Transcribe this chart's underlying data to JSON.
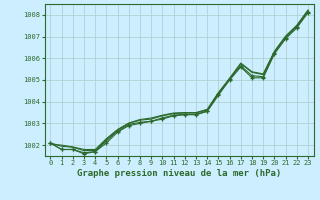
{
  "x": [
    0,
    1,
    2,
    3,
    4,
    5,
    6,
    7,
    8,
    9,
    10,
    11,
    12,
    13,
    14,
    15,
    16,
    17,
    18,
    19,
    20,
    21,
    22,
    23
  ],
  "line1": [
    1002.1,
    1001.8,
    1001.8,
    1001.6,
    1001.7,
    1002.1,
    1002.6,
    1002.9,
    1003.0,
    1003.1,
    1003.2,
    1003.35,
    1003.4,
    1003.4,
    1003.55,
    1004.3,
    1005.0,
    1005.6,
    1005.1,
    1005.1,
    1006.2,
    1006.9,
    1007.4,
    1008.1
  ],
  "line2": [
    1002.1,
    1001.8,
    1001.8,
    1001.65,
    1001.7,
    1002.2,
    1002.65,
    1002.95,
    1003.05,
    1003.1,
    1003.25,
    1003.38,
    1003.42,
    1003.42,
    1003.58,
    1004.35,
    1005.05,
    1005.65,
    1005.2,
    1005.15,
    1006.25,
    1006.95,
    1007.45,
    1008.15
  ],
  "line3": [
    1002.1,
    1001.95,
    1001.9,
    1001.75,
    1001.75,
    1002.25,
    1002.7,
    1003.0,
    1003.15,
    1003.2,
    1003.35,
    1003.45,
    1003.48,
    1003.48,
    1003.62,
    1004.4,
    1005.05,
    1005.75,
    1005.35,
    1005.25,
    1006.3,
    1007.0,
    1007.5,
    1008.2
  ],
  "line4": [
    1002.05,
    1002.0,
    1001.92,
    1001.8,
    1001.8,
    1002.3,
    1002.72,
    1003.02,
    1003.18,
    1003.25,
    1003.38,
    1003.48,
    1003.5,
    1003.5,
    1003.65,
    1004.42,
    1005.08,
    1005.78,
    1005.38,
    1005.28,
    1006.32,
    1007.02,
    1007.52,
    1008.22
  ],
  "line_color": "#2d6a2d",
  "bg_color": "#cceeff",
  "grid_color": "#aacccc",
  "xlabel": "Graphe pression niveau de la mer (hPa)",
  "ylim": [
    1001.5,
    1008.5
  ],
  "xlim_min": -0.5,
  "xlim_max": 23.5,
  "yticks": [
    1002,
    1003,
    1004,
    1005,
    1006,
    1007,
    1008
  ],
  "xticks": [
    0,
    1,
    2,
    3,
    4,
    5,
    6,
    7,
    8,
    9,
    10,
    11,
    12,
    13,
    14,
    15,
    16,
    17,
    18,
    19,
    20,
    21,
    22,
    23
  ],
  "xtick_labels": [
    "0",
    "1",
    "2",
    "3",
    "4",
    "5",
    "6",
    "7",
    "8",
    "9",
    "10",
    "11",
    "12",
    "13",
    "14",
    "15",
    "16",
    "17",
    "18",
    "19",
    "20",
    "21",
    "22",
    "23"
  ],
  "label_fontsize": 5.0,
  "xlabel_fontsize": 6.5
}
